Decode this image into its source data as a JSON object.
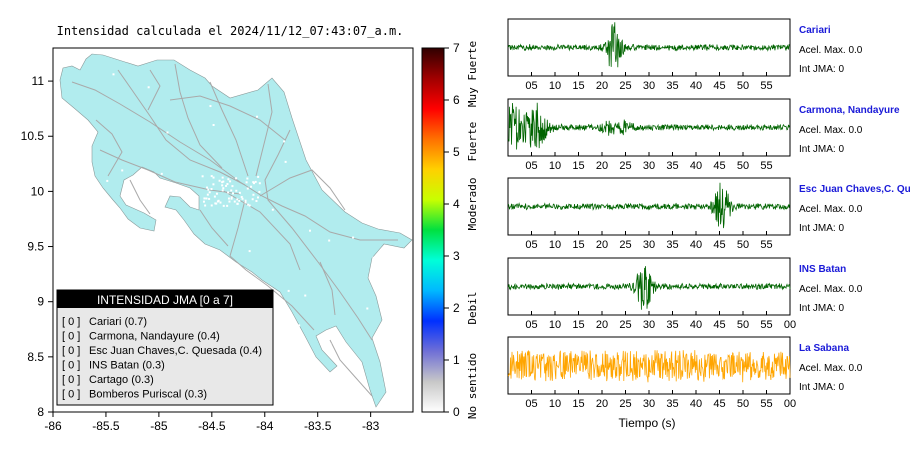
{
  "map": {
    "title": "Intensidad calculada el 2024/11/12_07:43:07_a.m.",
    "xlim": [
      -86,
      -82.6
    ],
    "ylim": [
      8,
      11.3
    ],
    "xticks": [
      "-86",
      "-85.5",
      "-85",
      "-84.5",
      "-84",
      "-83.5",
      "-83"
    ],
    "xtick_values": [
      -86,
      -85.5,
      -85,
      -84.5,
      -84,
      -83.5,
      -83
    ],
    "yticks": [
      "8",
      "8.5",
      "9",
      "9.5",
      "10",
      "10.5",
      "11"
    ],
    "ytick_values": [
      8,
      8.5,
      9,
      9.5,
      10,
      10.5,
      11
    ],
    "land_color": "#b1ecee",
    "road_color": "#a9a9a9"
  },
  "legend": {
    "title": "INTENSIDAD JMA [0 a 7]",
    "entries": [
      {
        "bracket": "[ 0 ]",
        "label": "Cariari (0.7)"
      },
      {
        "bracket": "[ 0 ]",
        "label": "Carmona, Nandayure (0.4)"
      },
      {
        "bracket": "[ 0 ]",
        "label": "Esc Juan Chaves,C. Quesada (0.4)"
      },
      {
        "bracket": "[ 0 ]",
        "label": "INS Batan (0.3)"
      },
      {
        "bracket": "[ 0 ]",
        "label": "Cartago (0.3)"
      },
      {
        "bracket": "[ 0 ]",
        "label": "Bomberos Puriscal (0.3)"
      }
    ]
  },
  "colorbar": {
    "ticks": [
      "0",
      "1",
      "2",
      "3",
      "4",
      "5",
      "6",
      "7"
    ],
    "tick_values": [
      0,
      1,
      2,
      3,
      4,
      5,
      6,
      7
    ],
    "labels": [
      {
        "text": "No sentido",
        "value": 0.5
      },
      {
        "text": "Debil",
        "value": 2
      },
      {
        "text": "Moderado",
        "value": 4
      },
      {
        "text": "Fuerte",
        "value": 5.2
      },
      {
        "text": "Muy Fuerte",
        "value": 6.5
      }
    ],
    "stops": [
      "#ffffff",
      "#c8c8c8",
      "#6f6fd6",
      "#0030ff",
      "#00b8ff",
      "#00ffd8",
      "#00e040",
      "#c8ff00",
      "#ffd000",
      "#ff7000",
      "#ff0000",
      "#a00000",
      "#300000"
    ]
  },
  "chart_data": {
    "type": "line",
    "xlabel": "Tiempo (s)",
    "xlim": [
      0,
      60
    ],
    "xticks": [
      "05",
      "10",
      "15",
      "20",
      "25",
      "30",
      "35",
      "40",
      "45",
      "50",
      "55",
      "00"
    ],
    "xtick_values": [
      5,
      10,
      15,
      20,
      25,
      30,
      35,
      40,
      45,
      50,
      55,
      60
    ],
    "series": [
      {
        "name": "Cariari",
        "accel_label": "Acel. Max. 0.0",
        "int_label": "Int JMA: 0",
        "color": "#006400",
        "last_tick": "55",
        "peak_times": [
          22.5
        ],
        "peak_amp": 0.95
      },
      {
        "name": "Carmona, Nandayure",
        "accel_label": "Acel. Max. 0.0",
        "int_label": "Int JMA: 0",
        "color": "#006400",
        "last_tick": "55",
        "peak_times": [
          1,
          6,
          21.5,
          25
        ],
        "peak_amp": 0.9
      },
      {
        "name": "Esc Juan Chaves,C. Qu",
        "accel_label": "Acel. Max. 0.0",
        "int_label": "Int JMA: 0",
        "color": "#006400",
        "last_tick": "55",
        "peak_times": [
          45.5
        ],
        "peak_amp": 0.95
      },
      {
        "name": "INS Batan",
        "accel_label": "Acel. Max. 0.0",
        "int_label": "Int JMA: 0",
        "color": "#006400",
        "last_tick": "00",
        "peak_times": [
          29
        ],
        "peak_amp": 0.95
      },
      {
        "name": "La Sabana",
        "accel_label": "Acel. Max. 0.0",
        "int_label": "Int JMA: 0",
        "color": "#ffa500",
        "last_tick": "00",
        "peak_times": [],
        "peak_amp": 0.6
      }
    ]
  }
}
